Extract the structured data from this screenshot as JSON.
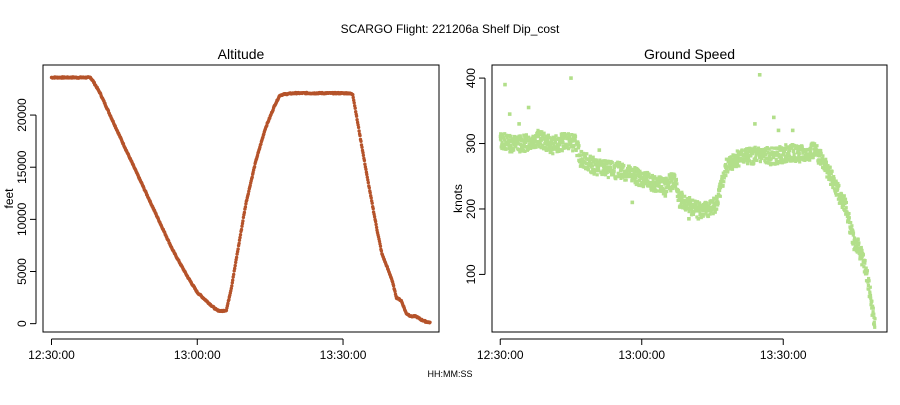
{
  "figure": {
    "title": "SCARGO Flight: 221206a  Shelf Dip_cost",
    "shared_xlabel": "HH:MM:SS"
  },
  "colors": {
    "altitude": "#b5532a",
    "speed": "#b2df8a",
    "axis": "#000000"
  },
  "chart_data": [
    {
      "type": "scatter",
      "title": "Altitude",
      "xlabel": "",
      "ylabel": "feet",
      "x_unit": "HH:MM:SS",
      "xlim": [
        "12:28:15",
        "13:49:45"
      ],
      "ylim": [
        -800,
        24800
      ],
      "x_ticks": [
        "12:30:00",
        "13:00:00",
        "13:30:00"
      ],
      "y_ticks": [
        0,
        5000,
        10000,
        15000,
        20000
      ],
      "grid": false,
      "series": [
        {
          "x": [
            "12:30:00",
            "12:38:00",
            "12:38:30",
            "12:40:00",
            "12:45:00",
            "12:50:00",
            "12:55:00",
            "12:58:00",
            "13:00:00",
            "13:03:00",
            "13:04:00",
            "13:05:00",
            "13:06:00",
            "13:07:00",
            "13:10:00",
            "13:12:00",
            "13:14:00",
            "13:16:00",
            "13:17:00",
            "13:18:00",
            "13:20:00",
            "13:25:00",
            "13:31:00",
            "13:32:00",
            "13:33:00",
            "13:35:00",
            "13:37:00",
            "13:38:00",
            "13:40:00",
            "13:41:00",
            "13:42:00",
            "13:43:00",
            "13:44:00",
            "13:45:00",
            "13:46:00",
            "13:47:00",
            "13:48:00"
          ],
          "y": [
            23600,
            23600,
            23300,
            22100,
            17000,
            12000,
            7000,
            4500,
            3000,
            1700,
            1300,
            1200,
            1300,
            3400,
            11500,
            15500,
            18700,
            21000,
            21900,
            22000,
            22100,
            22100,
            22100,
            22000,
            19300,
            14000,
            9000,
            6700,
            4300,
            2500,
            2200,
            1000,
            700,
            700,
            400,
            200,
            100
          ]
        }
      ]
    },
    {
      "type": "scatter",
      "title": "Ground Speed",
      "xlabel": "",
      "ylabel": "knots",
      "x_unit": "HH:MM:SS",
      "xlim": [
        "12:28:15",
        "13:52:00"
      ],
      "ylim": [
        12,
        420
      ],
      "x_ticks": [
        "12:30:00",
        "13:00:00",
        "13:30:00"
      ],
      "y_ticks": [
        100,
        200,
        300,
        400
      ],
      "grid": false,
      "series": [
        {
          "x": [
            "12:30:00",
            "12:32:00",
            "12:35:00",
            "12:38:00",
            "12:41:00",
            "12:44:00",
            "12:46:00",
            "12:47:00",
            "12:50:00",
            "12:53:00",
            "12:56:00",
            "12:59:00",
            "13:02:00",
            "13:05:00",
            "13:07:00",
            "13:08:00",
            "13:10:00",
            "13:12:00",
            "13:14:00",
            "13:16:00",
            "13:18:00",
            "13:20:00",
            "13:22:00",
            "13:25:00",
            "13:28:00",
            "13:31:00",
            "13:33:00",
            "13:35:00",
            "13:36:00",
            "13:38:00",
            "13:40:00",
            "13:42:00",
            "13:43:00",
            "13:44:00",
            "13:45:00",
            "13:46:00",
            "13:47:00",
            "13:48:00",
            "13:49:00",
            "13:49:30"
          ],
          "y": [
            305,
            300,
            300,
            308,
            297,
            304,
            300,
            278,
            265,
            260,
            258,
            250,
            240,
            235,
            245,
            215,
            205,
            200,
            198,
            210,
            265,
            278,
            280,
            282,
            280,
            286,
            285,
            282,
            290,
            280,
            250,
            220,
            210,
            180,
            150,
            140,
            120,
            90,
            40,
            20
          ]
        },
        {
          "x": [
            "12:31:00",
            "12:32:00",
            "12:34:00",
            "12:36:00",
            "12:45:00",
            "12:51:00",
            "12:58:00",
            "13:05:00",
            "13:10:00",
            "13:20:00",
            "13:24:00",
            "13:25:00",
            "13:28:00",
            "13:32:00",
            "13:29:00",
            "13:12:00"
          ],
          "y": [
            390,
            345,
            330,
            355,
            400,
            290,
            210,
            220,
            185,
            265,
            330,
            405,
            340,
            320,
            320,
            185
          ]
        }
      ]
    }
  ]
}
